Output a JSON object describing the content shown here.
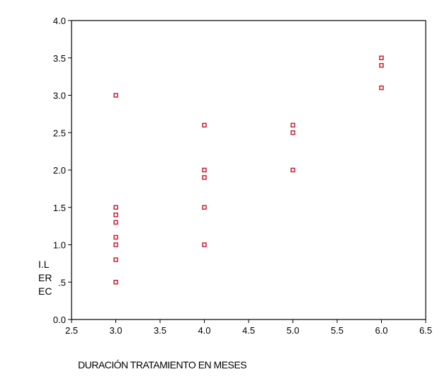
{
  "chart_data": {
    "type": "scatter",
    "xlabel": "DURACIÓN TRATAMIENTO EN MESES",
    "ylabel_lines": [
      "I.L",
      "ER",
      "EC"
    ],
    "xlim": [
      2.5,
      6.5
    ],
    "ylim": [
      0.0,
      4.0
    ],
    "x_ticks": [
      2.5,
      3.0,
      3.5,
      4.0,
      4.5,
      5.0,
      5.5,
      6.0,
      6.5
    ],
    "x_tick_labels": [
      "2.5",
      "3.0",
      "3.5",
      "4.0",
      "4.5",
      "5.0",
      "5.5",
      "6.0",
      "6.5"
    ],
    "y_ticks": [
      0.0,
      0.5,
      1.0,
      1.5,
      2.0,
      2.5,
      3.0,
      3.5,
      4.0
    ],
    "y_tick_labels": [
      "0.0",
      ".5",
      "1.0",
      "1.5",
      "2.0",
      "2.5",
      "3.0",
      "3.5",
      "4.0"
    ],
    "grid": false,
    "marker_color": "#cc1f36",
    "points": [
      {
        "x": 3.0,
        "y": 3.0
      },
      {
        "x": 3.0,
        "y": 1.5
      },
      {
        "x": 3.0,
        "y": 1.4
      },
      {
        "x": 3.0,
        "y": 1.3
      },
      {
        "x": 3.0,
        "y": 1.1
      },
      {
        "x": 3.0,
        "y": 1.0
      },
      {
        "x": 3.0,
        "y": 0.8
      },
      {
        "x": 3.0,
        "y": 0.5
      },
      {
        "x": 4.0,
        "y": 2.6
      },
      {
        "x": 4.0,
        "y": 2.0
      },
      {
        "x": 4.0,
        "y": 1.9
      },
      {
        "x": 4.0,
        "y": 1.5
      },
      {
        "x": 4.0,
        "y": 1.0
      },
      {
        "x": 5.0,
        "y": 2.6
      },
      {
        "x": 5.0,
        "y": 2.5
      },
      {
        "x": 5.0,
        "y": 2.0
      },
      {
        "x": 6.0,
        "y": 3.5
      },
      {
        "x": 6.0,
        "y": 3.4
      },
      {
        "x": 6.0,
        "y": 3.1
      }
    ]
  }
}
